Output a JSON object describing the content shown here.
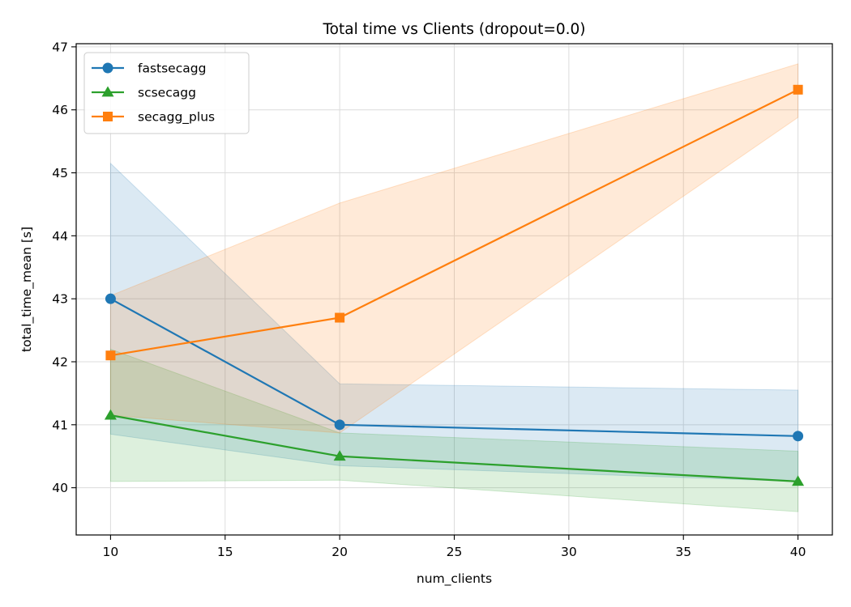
{
  "chart_data": {
    "type": "line",
    "title": "Total time vs Clients (dropout=0.0)",
    "xlabel": "num_clients",
    "ylabel": "total_time_mean [s]",
    "xlim": [
      8.5,
      41.5
    ],
    "ylim": [
      39.25,
      47.05
    ],
    "x_ticks": [
      10,
      15,
      20,
      25,
      30,
      35,
      40
    ],
    "y_ticks": [
      40,
      41,
      42,
      43,
      44,
      45,
      46,
      47
    ],
    "grid": true,
    "legend_position": "top-left",
    "x": [
      10,
      20,
      40
    ],
    "series": [
      {
        "name": "fastsecagg",
        "color": "#1f77b4",
        "marker": "circle",
        "values": [
          43.0,
          41.0,
          40.82
        ],
        "band_lower": [
          40.85,
          40.35,
          40.1
        ],
        "band_upper": [
          45.15,
          41.65,
          41.55
        ]
      },
      {
        "name": "scsecagg",
        "color": "#2ca02c",
        "marker": "triangle",
        "values": [
          41.15,
          40.5,
          40.1
        ],
        "band_lower": [
          40.1,
          40.12,
          39.62
        ],
        "band_upper": [
          42.2,
          40.87,
          40.58
        ]
      },
      {
        "name": "secagg_plus",
        "color": "#ff7f0e",
        "marker": "square",
        "values": [
          42.1,
          42.7,
          46.32
        ],
        "band_lower": [
          41.15,
          40.87,
          45.88
        ],
        "band_upper": [
          43.05,
          44.52,
          46.73
        ]
      }
    ]
  }
}
